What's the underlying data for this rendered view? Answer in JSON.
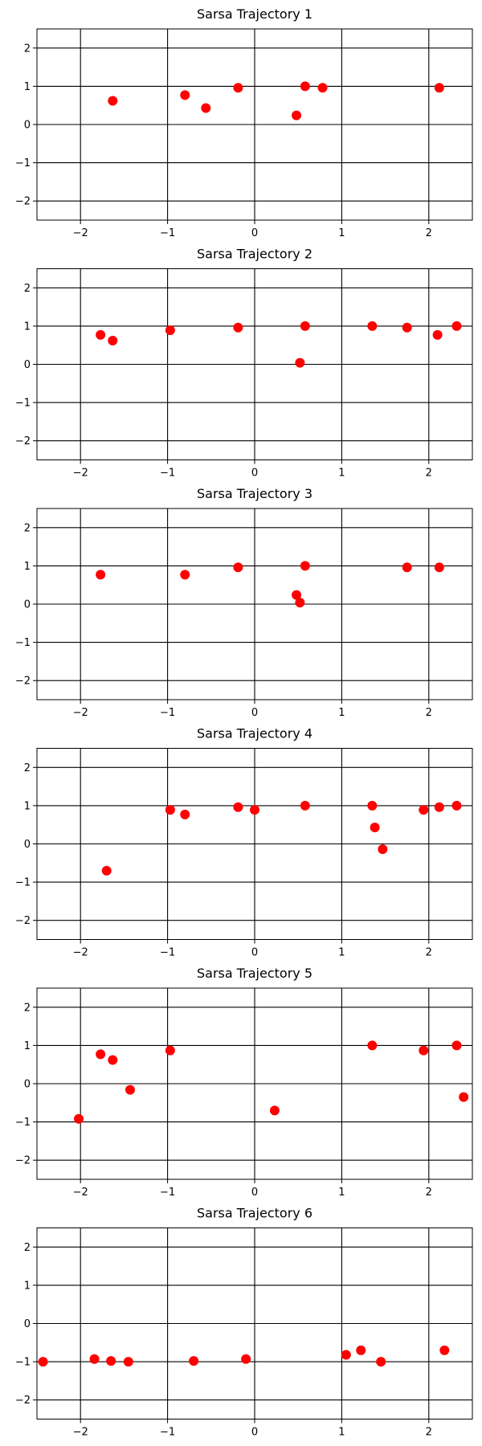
{
  "chart_data": [
    {
      "type": "scatter",
      "title": "Sarsa Trajectory 1",
      "xlim": [
        -2.5,
        2.5
      ],
      "ylim": [
        -2.5,
        2.5
      ],
      "xticks": [
        -2,
        -1,
        0,
        1,
        2
      ],
      "yticks": [
        -2,
        -1,
        0,
        1,
        2
      ],
      "xtick_labels": [
        "−2",
        "−1",
        "0",
        "1",
        "2"
      ],
      "ytick_labels": [
        "−2",
        "−1",
        "0",
        "1",
        "2"
      ],
      "grid": true,
      "marker_color": "#ff0000",
      "points": [
        {
          "x": -1.63,
          "y": 0.62
        },
        {
          "x": -0.8,
          "y": 0.77
        },
        {
          "x": -0.56,
          "y": 0.43
        },
        {
          "x": -0.19,
          "y": 0.96
        },
        {
          "x": 0.48,
          "y": 0.24
        },
        {
          "x": 0.58,
          "y": 1.0
        },
        {
          "x": 0.78,
          "y": 0.96
        },
        {
          "x": 2.12,
          "y": 0.96
        }
      ]
    },
    {
      "type": "scatter",
      "title": "Sarsa Trajectory 2",
      "xlim": [
        -2.5,
        2.5
      ],
      "ylim": [
        -2.5,
        2.5
      ],
      "xticks": [
        -2,
        -1,
        0,
        1,
        2
      ],
      "yticks": [
        -2,
        -1,
        0,
        1,
        2
      ],
      "xtick_labels": [
        "−2",
        "−1",
        "0",
        "1",
        "2"
      ],
      "ytick_labels": [
        "−2",
        "−1",
        "0",
        "1",
        "2"
      ],
      "grid": true,
      "marker_color": "#ff0000",
      "points": [
        {
          "x": -1.77,
          "y": 0.77
        },
        {
          "x": -1.63,
          "y": 0.62
        },
        {
          "x": -0.97,
          "y": 0.89
        },
        {
          "x": -0.19,
          "y": 0.96
        },
        {
          "x": 0.52,
          "y": 0.04
        },
        {
          "x": 0.58,
          "y": 1.0
        },
        {
          "x": 1.35,
          "y": 1.0
        },
        {
          "x": 1.75,
          "y": 0.96
        },
        {
          "x": 2.1,
          "y": 0.77
        },
        {
          "x": 2.32,
          "y": 1.0
        }
      ]
    },
    {
      "type": "scatter",
      "title": "Sarsa Trajectory 3",
      "xlim": [
        -2.5,
        2.5
      ],
      "ylim": [
        -2.5,
        2.5
      ],
      "xticks": [
        -2,
        -1,
        0,
        1,
        2
      ],
      "yticks": [
        -2,
        -1,
        0,
        1,
        2
      ],
      "xtick_labels": [
        "−2",
        "−1",
        "0",
        "1",
        "2"
      ],
      "ytick_labels": [
        "−2",
        "−1",
        "0",
        "1",
        "2"
      ],
      "grid": true,
      "marker_color": "#ff0000",
      "points": [
        {
          "x": -1.77,
          "y": 0.77
        },
        {
          "x": -0.8,
          "y": 0.77
        },
        {
          "x": -0.19,
          "y": 0.96
        },
        {
          "x": 0.48,
          "y": 0.24
        },
        {
          "x": 0.52,
          "y": 0.04
        },
        {
          "x": 0.58,
          "y": 1.0
        },
        {
          "x": 1.75,
          "y": 0.96
        },
        {
          "x": 2.12,
          "y": 0.96
        }
      ]
    },
    {
      "type": "scatter",
      "title": "Sarsa Trajectory 4",
      "xlim": [
        -2.5,
        2.5
      ],
      "ylim": [
        -2.5,
        2.5
      ],
      "xticks": [
        -2,
        -1,
        0,
        1,
        2
      ],
      "yticks": [
        -2,
        -1,
        0,
        1,
        2
      ],
      "xtick_labels": [
        "−2",
        "−1",
        "0",
        "1",
        "2"
      ],
      "ytick_labels": [
        "−2",
        "−1",
        "0",
        "1",
        "2"
      ],
      "grid": true,
      "marker_color": "#ff0000",
      "points": [
        {
          "x": -1.7,
          "y": -0.7
        },
        {
          "x": -0.97,
          "y": 0.89
        },
        {
          "x": -0.8,
          "y": 0.77
        },
        {
          "x": -0.19,
          "y": 0.96
        },
        {
          "x": 0.0,
          "y": 0.89
        },
        {
          "x": 0.58,
          "y": 1.0
        },
        {
          "x": 1.35,
          "y": 1.0
        },
        {
          "x": 1.38,
          "y": 0.43
        },
        {
          "x": 1.47,
          "y": -0.14
        },
        {
          "x": 1.94,
          "y": 0.89
        },
        {
          "x": 2.12,
          "y": 0.96
        },
        {
          "x": 2.32,
          "y": 1.0
        }
      ]
    },
    {
      "type": "scatter",
      "title": "Sarsa Trajectory 5",
      "xlim": [
        -2.5,
        2.5
      ],
      "ylim": [
        -2.5,
        2.5
      ],
      "xticks": [
        -2,
        -1,
        0,
        1,
        2
      ],
      "yticks": [
        -2,
        -1,
        0,
        1,
        2
      ],
      "xtick_labels": [
        "−2",
        "−1",
        "0",
        "1",
        "2"
      ],
      "ytick_labels": [
        "−2",
        "−1",
        "0",
        "1",
        "2"
      ],
      "grid": true,
      "marker_color": "#ff0000",
      "points": [
        {
          "x": -2.02,
          "y": -0.92
        },
        {
          "x": -1.77,
          "y": 0.77
        },
        {
          "x": -1.63,
          "y": 0.62
        },
        {
          "x": -1.43,
          "y": -0.16
        },
        {
          "x": -0.97,
          "y": 0.87
        },
        {
          "x": 0.23,
          "y": -0.7
        },
        {
          "x": 1.35,
          "y": 1.0
        },
        {
          "x": 1.94,
          "y": 0.87
        },
        {
          "x": 2.32,
          "y": 1.0
        },
        {
          "x": 2.4,
          "y": -0.35
        }
      ]
    },
    {
      "type": "scatter",
      "title": "Sarsa Trajectory 6",
      "xlim": [
        -2.5,
        2.5
      ],
      "ylim": [
        -2.5,
        2.5
      ],
      "xticks": [
        -2,
        -1,
        0,
        1,
        2
      ],
      "yticks": [
        -2,
        -1,
        0,
        1,
        2
      ],
      "xtick_labels": [
        "−2",
        "−1",
        "0",
        "1",
        "2"
      ],
      "ytick_labels": [
        "−2",
        "−1",
        "0",
        "1",
        "2"
      ],
      "grid": true,
      "marker_color": "#ff0000",
      "points": [
        {
          "x": -2.43,
          "y": -1.0
        },
        {
          "x": -1.84,
          "y": -0.93
        },
        {
          "x": -1.65,
          "y": -0.98
        },
        {
          "x": -1.45,
          "y": -1.0
        },
        {
          "x": -0.7,
          "y": -0.98
        },
        {
          "x": -0.1,
          "y": -0.93
        },
        {
          "x": 1.05,
          "y": -0.82
        },
        {
          "x": 1.22,
          "y": -0.7
        },
        {
          "x": 1.45,
          "y": -1.0
        },
        {
          "x": 2.18,
          "y": -0.7
        }
      ]
    }
  ]
}
